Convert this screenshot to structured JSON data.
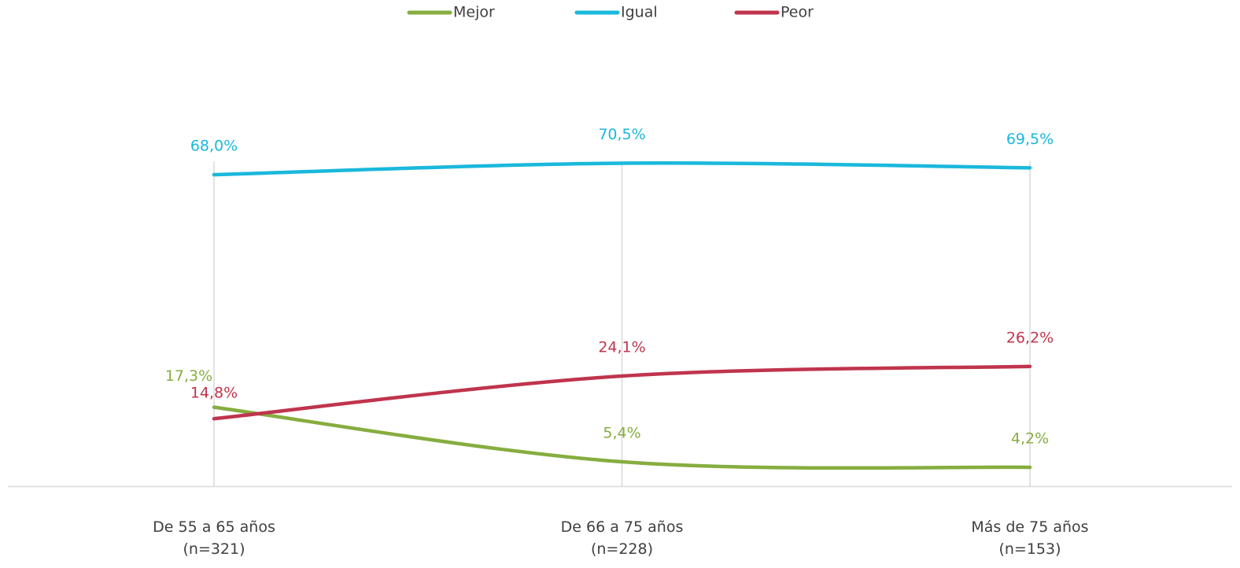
{
  "chart_data": {
    "type": "line",
    "categories": [
      "De 55 a 65 años\n(n=321)",
      "De 66 a 75 años\n(n=228)",
      "Más de 75 años\n(n=153)"
    ],
    "series": [
      {
        "name": "Mejor",
        "color": "#86ad3f",
        "values": [
          17.3,
          5.4,
          4.2
        ],
        "value_labels": [
          "17,3%",
          "5,4%",
          "4,2%"
        ]
      },
      {
        "name": "Igual",
        "color": "#1ab8dc",
        "values": [
          68.0,
          70.5,
          69.5
        ],
        "value_labels": [
          "68,0%",
          "70,5%",
          "69,5%"
        ]
      },
      {
        "name": "Peor",
        "color": "#c0344d",
        "values": [
          14.8,
          24.1,
          26.2
        ],
        "value_labels": [
          "14,8%",
          "24,1%",
          "26,2%"
        ]
      }
    ],
    "ylim": [
      0,
      100
    ],
    "legend": "top",
    "smooth": true
  }
}
